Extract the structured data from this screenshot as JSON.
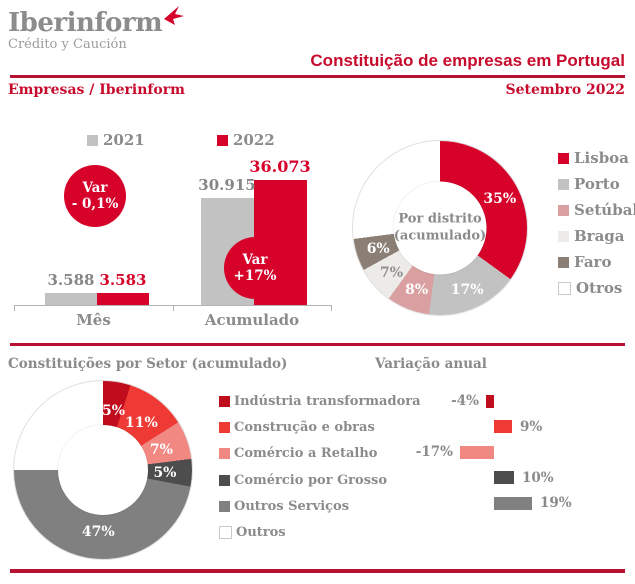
{
  "header": {
    "logo": {
      "brand": "Iberinform",
      "tagline": "Crédito y Caución",
      "mark_icon": "bird-arrow-icon",
      "mark_color": "#d6022a"
    },
    "title": "Constituição de empresas em Portugal",
    "subtitle_left": "Empresas / Iberinform",
    "subtitle_right": "Setembro 2022"
  },
  "colors": {
    "primary_red": "#d6022a",
    "divider_red": "#b81233",
    "text_gray": "#8a8a8a",
    "bar_gray": "#c2c2c2"
  },
  "chart_data": [
    {
      "id": "constituicoes",
      "type": "bar",
      "title": "",
      "categories": [
        "Mês",
        "Acumulado"
      ],
      "series": [
        {
          "name": "2021",
          "color": "#c2c2c2",
          "values": [
            3588,
            30915
          ],
          "labels": [
            "3.588",
            "30.915"
          ]
        },
        {
          "name": "2022",
          "color": "#d6022a",
          "values": [
            3583,
            36073
          ],
          "labels": [
            "3.583",
            "36.073"
          ]
        }
      ],
      "annotations": [
        {
          "line1": "Var",
          "line2": "- 0,1%"
        },
        {
          "line1": "Var",
          "line2": "+17%"
        }
      ]
    },
    {
      "id": "por-distrito",
      "type": "pie",
      "title": "Por distrito (acumulado)",
      "center_label_line1": "Por distrito",
      "center_label_line2": "(acumulado)",
      "legend_position": "right",
      "segments": [
        {
          "label": "Lisboa",
          "value": 35,
          "display": "35%",
          "color": "#d6022a",
          "text_color": "#ffffff"
        },
        {
          "label": "Porto",
          "value": 17,
          "display": "17%",
          "color": "#c2c2c2",
          "text_color": "#ffffff"
        },
        {
          "label": "Setúbal",
          "value": 8,
          "display": "8%",
          "color": "#da9fa0",
          "text_color": "#ffffff"
        },
        {
          "label": "Braga",
          "value": 7,
          "display": "7%",
          "color": "#edebe8",
          "text_color": "#8f8f8f"
        },
        {
          "label": "Faro",
          "value": 6,
          "display": "6%",
          "color": "#8b7f75",
          "text_color": "#ffffff"
        },
        {
          "label": "Otros",
          "value": 27,
          "display": "",
          "color": "#ffffff",
          "text_color": ""
        }
      ]
    },
    {
      "id": "por-setor",
      "type": "pie",
      "title": "Constituições por Setor (acumulado)",
      "segments": [
        {
          "label": "Indústria transformadora",
          "value": 5,
          "display": "5%",
          "color": "#c00d1d",
          "text_color": "#ffffff"
        },
        {
          "label": "Construção e obras",
          "value": 11,
          "display": "11%",
          "color": "#ee3934",
          "text_color": "#ffffff"
        },
        {
          "label": "Comércio a Retalho",
          "value": 7,
          "display": "7%",
          "color": "#f28882",
          "text_color": "#ffffff"
        },
        {
          "label": "Comércio por Grosso",
          "value": 5,
          "display": "5%",
          "color": "#4d4d4d",
          "text_color": "#ffffff"
        },
        {
          "label": "Outros Serviços",
          "value": 47,
          "display": "47%",
          "color": "#808080",
          "text_color": "#ffffff"
        },
        {
          "label": "Outros",
          "value": 25,
          "display": "",
          "color": "#ffffff",
          "text_color": ""
        }
      ]
    },
    {
      "id": "variacao-anual",
      "type": "bar",
      "orientation": "horizontal",
      "title": "Variação anual",
      "categories": [
        "Indústria transformadora",
        "Construção e obras",
        "Comércio a Retalho",
        "Comércio por Grosso",
        "Outros Serviços"
      ],
      "values": [
        -4,
        9,
        -17,
        10,
        19
      ],
      "labels": [
        "-4%",
        "9%",
        "-17%",
        "10%",
        "19%"
      ],
      "colors": [
        "#c00d1d",
        "#ee3934",
        "#f28882",
        "#4d4d4d",
        "#808080"
      ]
    }
  ]
}
